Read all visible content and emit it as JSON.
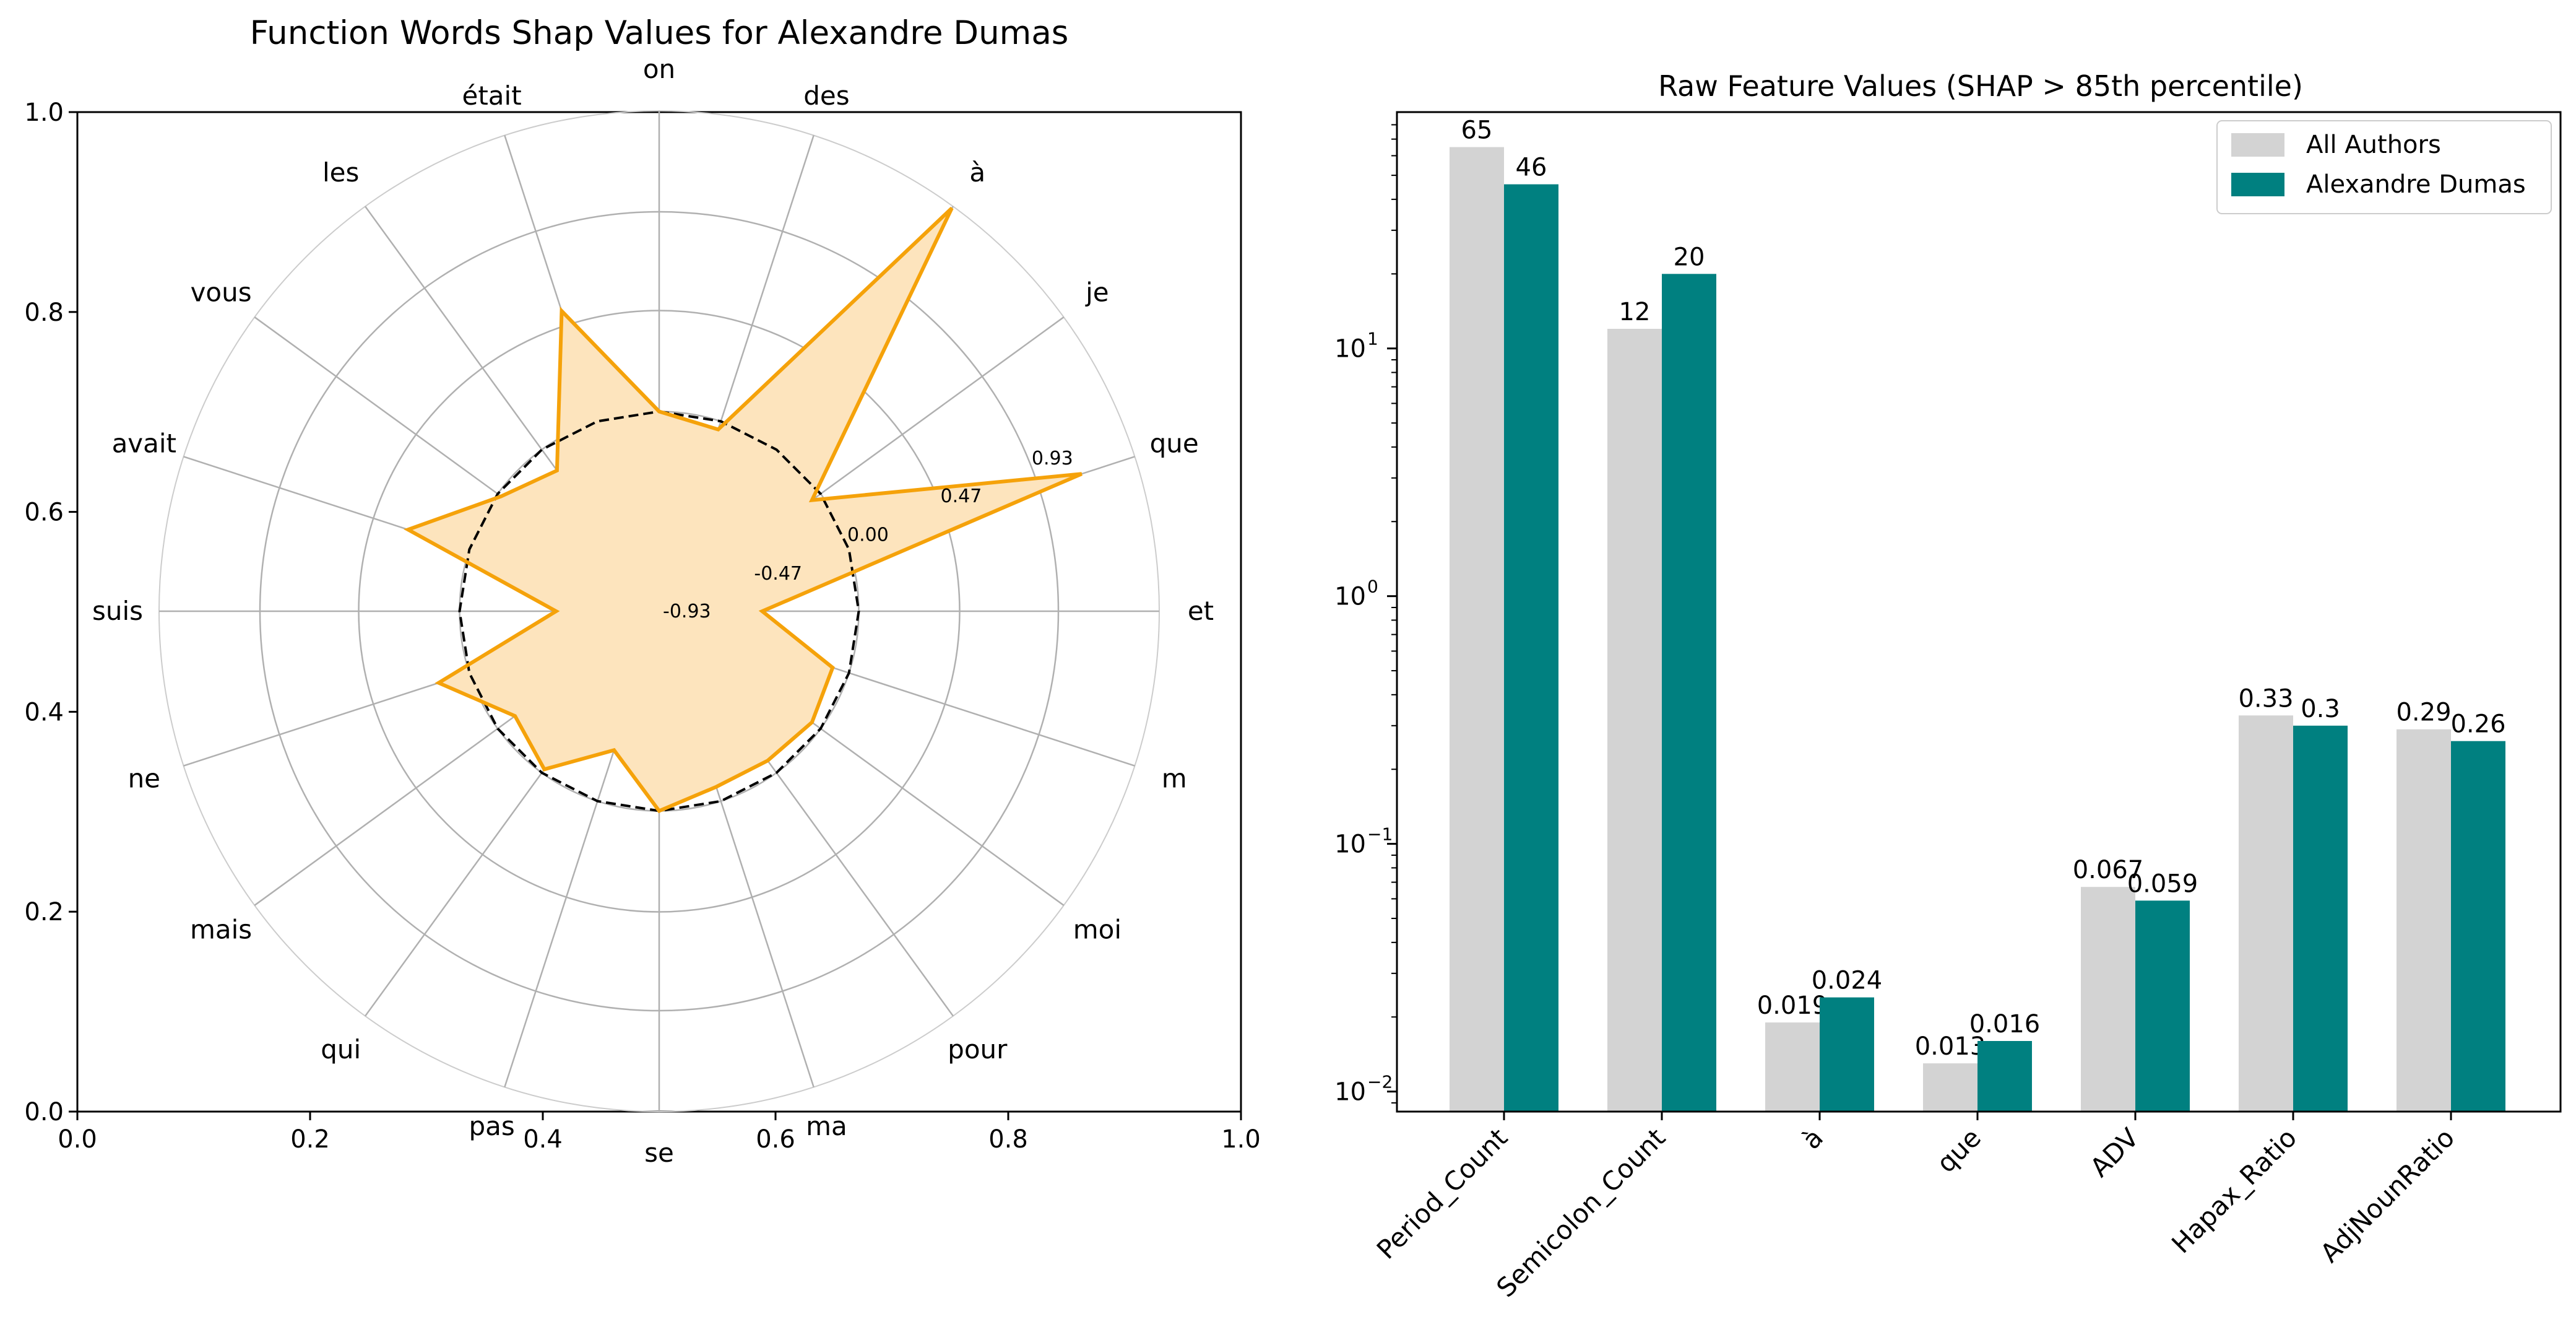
{
  "colors": {
    "radar_line": "#f5a20a",
    "radar_fill": "#fde4bd",
    "baseline": "#000000",
    "grid": "#b0b0b0",
    "bar_all": "#d3d3d3",
    "bar_author": "#008080"
  },
  "chart_data": [
    {
      "type": "radar",
      "title": "Function Words Shap Values for Alexandre Dumas",
      "categories": [
        "on",
        "des",
        "à",
        "je",
        "que",
        "et",
        "m",
        "moi",
        "pour",
        "ma",
        "se",
        "pas",
        "qui",
        "mais",
        "ne",
        "suis",
        "avait",
        "vous",
        "les",
        "était"
      ],
      "values": [
        0.0,
        -0.04,
        1.39,
        -0.05,
        1.14,
        -0.45,
        -0.08,
        -0.05,
        -0.07,
        -0.07,
        0.0,
        -0.25,
        -0.02,
        -0.1,
        0.15,
        -0.45,
        0.3,
        -0.02,
        -0.12,
        0.54
      ],
      "baseline": 0.0,
      "radial_ticks": [
        "-0.93",
        "-0.47",
        "0.00",
        "0.47",
        "0.93"
      ],
      "rlim": [
        -0.93,
        1.4
      ],
      "frame_xticks": [
        "0.0",
        "0.2",
        "0.4",
        "0.6",
        "0.8",
        "1.0"
      ],
      "frame_yticks": [
        "0.0",
        "0.2",
        "0.4",
        "0.6",
        "0.8",
        "1.0"
      ]
    },
    {
      "type": "bar",
      "title": "Raw Feature Values (SHAP > 85th percentile)",
      "categories": [
        "Period_Count",
        "Semicolon_Count",
        "à",
        "que",
        "ADV",
        "Hapax_Ratio",
        "AdjNounRatio"
      ],
      "series": [
        {
          "name": "All Authors",
          "values": [
            65,
            12,
            0.019,
            0.013,
            0.067,
            0.33,
            0.29
          ],
          "labels": [
            "65",
            "12",
            "0.019",
            "0.013",
            "0.067",
            "0.33",
            "0.29"
          ]
        },
        {
          "name": "Alexandre Dumas",
          "values": [
            46,
            20,
            0.024,
            0.016,
            0.059,
            0.3,
            0.26
          ],
          "labels": [
            "46",
            "20",
            "0.024",
            "0.016",
            "0.059",
            "0.3",
            "0.26"
          ]
        }
      ],
      "yscale": "log",
      "ylim": [
        0.0083,
        90
      ],
      "yticks": [
        {
          "base": "10",
          "exp": "−2",
          "value": 0.01
        },
        {
          "base": "10",
          "exp": "−1",
          "value": 0.1
        },
        {
          "base": "10",
          "exp": "0",
          "value": 1
        },
        {
          "base": "10",
          "exp": "1",
          "value": 10
        }
      ],
      "legend_position": "upper right"
    }
  ]
}
